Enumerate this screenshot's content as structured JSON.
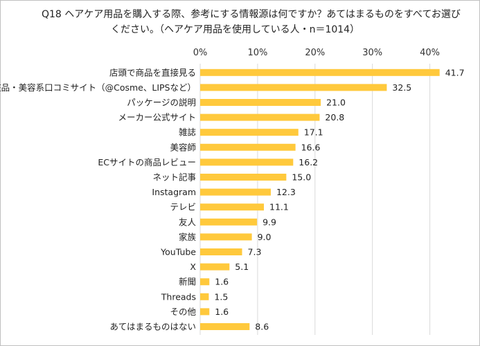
{
  "title_line1": "Q18 ヘアケア用品を購入する際、参考にする情報源は何ですか？あてはまるものをすべてお選び",
  "title_line2": "ください。（ヘアケア用品を使用している人・n＝1014）",
  "colors": {
    "bar": "#FFC93C",
    "grid": "#d9d9d9",
    "text": "#222222"
  },
  "chart_data": {
    "type": "bar",
    "orientation": "horizontal",
    "title": "Q18 ヘアケア用品を購入する際、参考にする情報源は何ですか？あてはまるものをすべてお選びください。（ヘアケア用品を使用している人・n＝1014）",
    "categories": [
      "店頭で商品を直接見る",
      "化粧品・美容系口コミサイト（@Cosme、LIPSなど）",
      "パッケージの説明",
      "メーカー公式サイト",
      "雑誌",
      "美容師",
      "ECサイトの商品レビュー",
      "ネット記事",
      "Instagram",
      "テレビ",
      "友人",
      "家族",
      "YouTube",
      "X",
      "新聞",
      "Threads",
      "その他",
      "あてはまるものはない"
    ],
    "values": [
      41.7,
      32.5,
      21.0,
      20.8,
      17.1,
      16.6,
      16.2,
      15.0,
      12.3,
      11.1,
      9.9,
      9.0,
      7.3,
      5.1,
      1.6,
      1.5,
      1.6,
      8.6
    ],
    "value_labels": [
      "41.7",
      "32.5",
      "21.0",
      "20.8",
      "17.1",
      "16.6",
      "16.2",
      "15.0",
      "12.3",
      "11.1",
      "9.9",
      "9.0",
      "7.3",
      "5.1",
      "1.6",
      "1.5",
      "1.6",
      "8.6"
    ],
    "x_ticks": [
      "0%",
      "10%",
      "20%",
      "30%",
      "40%"
    ],
    "x_tick_values": [
      0,
      10,
      20,
      30,
      40
    ],
    "xlim": [
      0,
      43
    ],
    "xlabel": "",
    "ylabel": "",
    "grid": true,
    "legend": "none"
  }
}
